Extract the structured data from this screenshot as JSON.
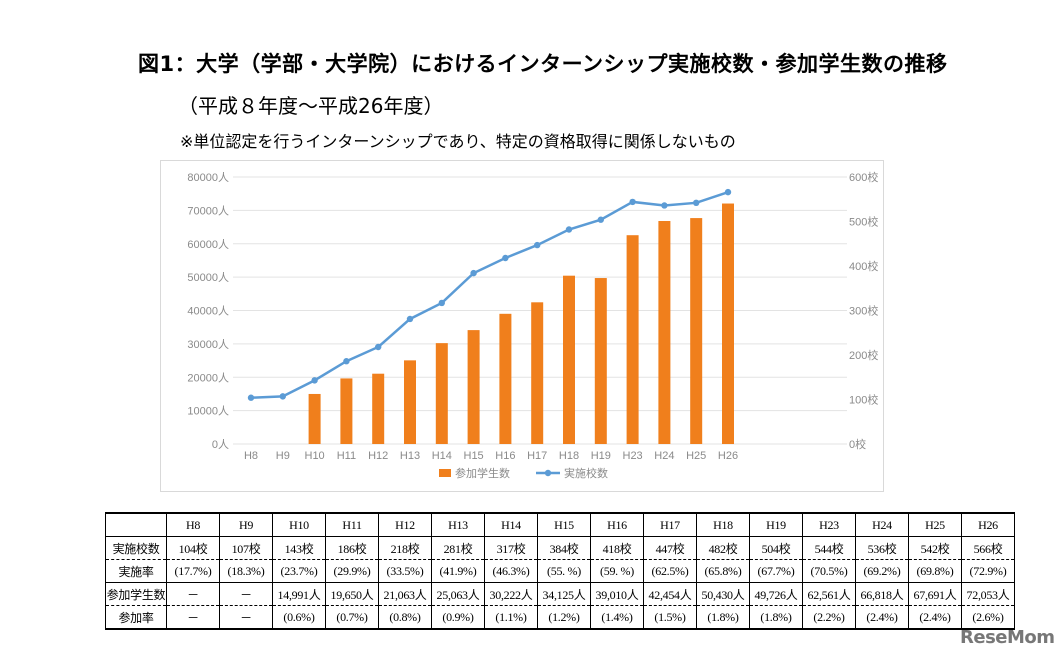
{
  "title": "図1：大学（学部・大学院）におけるインターンシップ実施校数・参加学生数の推移",
  "subtitle": "（平成８年度～平成26年度）",
  "note": "※単位認定を行うインターンシップであり、特定の資格取得に関係しないもの",
  "chart_data": {
    "type": "bar+line",
    "categories": [
      "H8",
      "H9",
      "H10",
      "H11",
      "H12",
      "H13",
      "H14",
      "H15",
      "H16",
      "H17",
      "H18",
      "H19",
      "H23",
      "H24",
      "H25",
      "H26"
    ],
    "series": [
      {
        "name": "参加学生数",
        "type": "bar",
        "axis": "left",
        "color": "#f07f1c",
        "values": [
          null,
          null,
          14991,
          19650,
          21063,
          25063,
          30222,
          34125,
          39010,
          42454,
          50430,
          49726,
          62561,
          66818,
          67691,
          72053
        ]
      },
      {
        "name": "実施校数",
        "type": "line",
        "axis": "right",
        "color": "#5b9bd5",
        "values": [
          104,
          107,
          143,
          186,
          218,
          281,
          317,
          384,
          418,
          447,
          482,
          504,
          544,
          536,
          542,
          566
        ]
      }
    ],
    "left_axis": {
      "range": [
        0,
        80000
      ],
      "ticks": [
        "0人",
        "10000人",
        "20000人",
        "30000人",
        "40000人",
        "50000人",
        "60000人",
        "70000人",
        "80000人"
      ]
    },
    "right_axis": {
      "range": [
        0,
        600
      ],
      "ticks": [
        "0校",
        "100校",
        "200校",
        "300校",
        "400校",
        "500校",
        "600校"
      ]
    },
    "grid": true,
    "legend": "bottom"
  },
  "table": {
    "headers": [
      "",
      "H8",
      "H9",
      "H10",
      "H11",
      "H12",
      "H13",
      "H14",
      "H15",
      "H16",
      "H17",
      "H18",
      "H19",
      "H23",
      "H24",
      "H25",
      "H26"
    ],
    "rows": [
      [
        "実施校数",
        "104校",
        "107校",
        "143校",
        "186校",
        "218校",
        "281校",
        "317校",
        "384校",
        "418校",
        "447校",
        "482校",
        "504校",
        "544校",
        "536校",
        "542校",
        "566校"
      ],
      [
        "実施率",
        "(17.7%)",
        "(18.3%)",
        "(23.7%)",
        "(29.9%)",
        "(33.5%)",
        "(41.9%)",
        "(46.3%)",
        "(55. %)",
        "(59. %)",
        "(62.5%)",
        "(65.8%)",
        "(67.7%)",
        "(70.5%)",
        "(69.2%)",
        "(69.8%)",
        "(72.9%)"
      ],
      [
        "参加学生数",
        "－",
        "－",
        "14,991人",
        "19,650人",
        "21,063人",
        "25,063人",
        "30,222人",
        "34,125人",
        "39,010人",
        "42,454人",
        "50,430人",
        "49,726人",
        "62,561人",
        "66,818人",
        "67,691人",
        "72,053人"
      ],
      [
        "参加率",
        "－",
        "－",
        "(0.6%)",
        "(0.7%)",
        "(0.8%)",
        "(0.9%)",
        "(1.1%)",
        "(1.2%)",
        "(1.4%)",
        "(1.5%)",
        "(1.8%)",
        "(1.8%)",
        "(2.2%)",
        "(2.4%)",
        "(2.4%)",
        "(2.6%)"
      ]
    ]
  },
  "watermark": "ReseMom"
}
